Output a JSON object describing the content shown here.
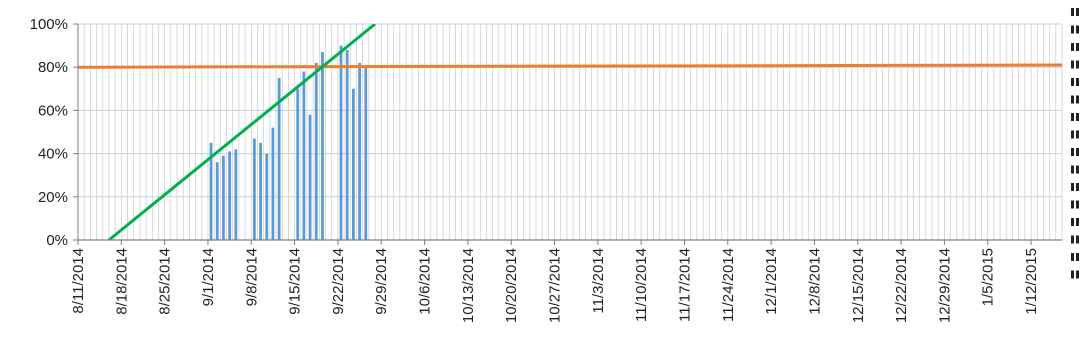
{
  "chart_data": {
    "type": "bar",
    "title": "",
    "xlabel": "",
    "ylabel": "",
    "x_start": "8/11/2014",
    "x_end": "1/17/2015",
    "ylim": [
      0,
      1
    ],
    "y_ticks": [
      "0%",
      "20%",
      "40%",
      "60%",
      "80%",
      "100%"
    ],
    "x_tick_labels": [
      "8/11/2014",
      "8/18/2014",
      "8/25/2014",
      "9/1/2014",
      "9/8/2014",
      "9/15/2014",
      "9/22/2014",
      "9/29/2014",
      "10/6/2014",
      "10/13/2014",
      "10/20/2014",
      "10/27/2014",
      "11/3/2014",
      "11/10/2014",
      "11/17/2014",
      "11/24/2014",
      "12/1/2014",
      "12/8/2014",
      "12/15/2014",
      "12/22/2014",
      "12/29/2014",
      "1/5/2015",
      "1/12/2015"
    ],
    "grid": "vertical daily lines and horizontal lines at each y tick",
    "series": [
      {
        "type": "bar",
        "color": "#5b9bd5",
        "points": [
          {
            "x": "9/1/2014",
            "y": 0.45
          },
          {
            "x": "9/2/2014",
            "y": 0.36
          },
          {
            "x": "9/3/2014",
            "y": 0.39
          },
          {
            "x": "9/4/2014",
            "y": 0.41
          },
          {
            "x": "9/5/2014",
            "y": 0.42
          },
          {
            "x": "9/8/2014",
            "y": 0.47
          },
          {
            "x": "9/9/2014",
            "y": 0.45
          },
          {
            "x": "9/10/2014",
            "y": 0.4
          },
          {
            "x": "9/11/2014",
            "y": 0.52
          },
          {
            "x": "9/12/2014",
            "y": 0.75
          },
          {
            "x": "9/15/2014",
            "y": 0.7
          },
          {
            "x": "9/16/2014",
            "y": 0.78
          },
          {
            "x": "9/17/2014",
            "y": 0.58
          },
          {
            "x": "9/18/2014",
            "y": 0.82
          },
          {
            "x": "9/19/2014",
            "y": 0.87
          },
          {
            "x": "9/22/2014",
            "y": 0.9
          },
          {
            "x": "9/23/2014",
            "y": 0.88
          },
          {
            "x": "9/24/2014",
            "y": 0.7
          },
          {
            "x": "9/25/2014",
            "y": 0.82
          },
          {
            "x": "9/26/2014",
            "y": 0.8
          }
        ]
      },
      {
        "type": "line",
        "color": "#ed7d31",
        "points": [
          {
            "x": "8/11/2014",
            "y": 0.8
          },
          {
            "x": "1/17/2015",
            "y": 0.81
          }
        ]
      },
      {
        "type": "line",
        "color": "#00b050",
        "points": [
          {
            "x": "8/16/2014",
            "y": 0.0
          },
          {
            "x": "9/28/2014",
            "y": 1.0
          }
        ]
      }
    ]
  }
}
